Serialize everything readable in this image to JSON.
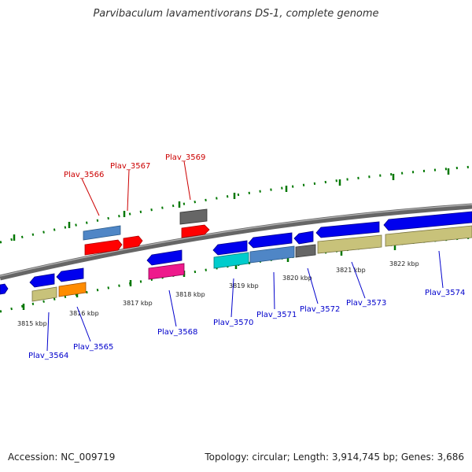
{
  "title": "Parvibaculum lavamentivorans DS-1, complete genome",
  "footer": {
    "accession": "Accession: NC_009719",
    "topology": "Topology: circular; Length: 3,914,745 bp; Genes: 3,686"
  },
  "scale_labels": [
    "3815 kbp",
    "3816 kbp",
    "3817 kbp",
    "3818 kbp",
    "3819 kbp",
    "3820 kbp",
    "3821 kbp",
    "3822 kbp"
  ],
  "gene_labels": [
    {
      "name": "Plav_3566",
      "color": "#cc0000"
    },
    {
      "name": "Plav_3567",
      "color": "#cc0000"
    },
    {
      "name": "Plav_3569",
      "color": "#cc0000"
    },
    {
      "name": "Plav_3564",
      "color": "#0000cc"
    },
    {
      "name": "Plav_3565",
      "color": "#0000cc"
    },
    {
      "name": "Plav_3568",
      "color": "#0000cc"
    },
    {
      "name": "Plav_3570",
      "color": "#0000cc"
    },
    {
      "name": "Plav_3571",
      "color": "#0000cc"
    },
    {
      "name": "Plav_3572",
      "color": "#0000cc"
    },
    {
      "name": "Plav_3573",
      "color": "#0000cc"
    },
    {
      "name": "Plav_3574",
      "color": "#0000cc"
    }
  ],
  "colors": {
    "red": "#ff0000",
    "blue": "#0000ee",
    "steel": "#4f86c6",
    "grey": "#666666",
    "khaki": "#c8c27a",
    "orange": "#ff8c00",
    "cyan": "#00cccc",
    "magenta": "#ee1a8c",
    "tick": "#007700"
  }
}
